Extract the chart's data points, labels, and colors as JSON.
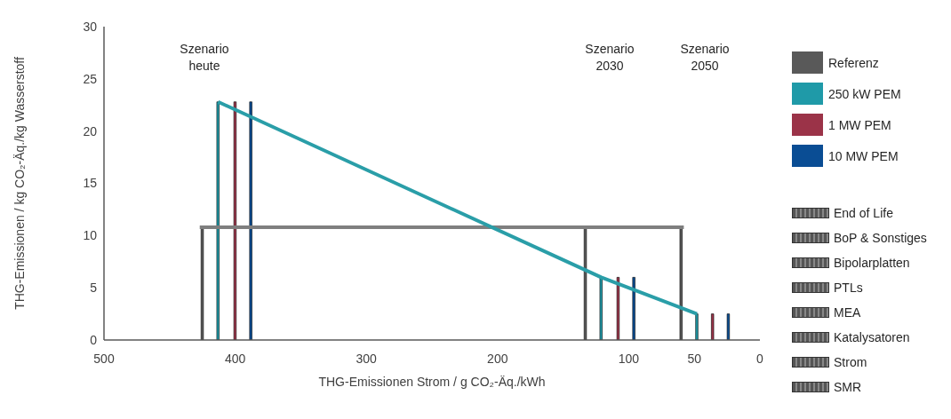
{
  "chart_data": {
    "type": "bar",
    "xlabel": "THG-Emissionen Strom / g CO₂-Äq./kWh",
    "ylabel": "THG-Emissionen / kg CO₂-Äq./kg Wasserstoff",
    "xlim": [
      500,
      0
    ],
    "xticks": [
      500,
      400,
      300,
      200,
      100,
      50,
      0
    ],
    "ylim": [
      0,
      30
    ],
    "yticks": [
      0,
      5,
      10,
      15,
      20,
      25,
      30
    ],
    "grid": false,
    "legend": "right",
    "series": [
      {
        "name": "Referenz",
        "color": "#595959",
        "x": [
          425,
          133,
          60
        ],
        "values": [
          10.8,
          10.8,
          10.8
        ]
      },
      {
        "name": "250 kW PEM",
        "color": "#1f9aa8",
        "x": [
          413,
          121,
          48
        ],
        "values": [
          22.8,
          6.0,
          2.5
        ]
      },
      {
        "name": "1 MW PEM",
        "color": "#9b3348",
        "x": [
          400,
          108,
          36
        ],
        "values": [
          22.8,
          6.0,
          2.5
        ]
      },
      {
        "name": "10 MW PEM",
        "color": "#0a4d94",
        "x": [
          388,
          96,
          24
        ],
        "values": [
          22.8,
          6.0,
          2.5
        ]
      },
      {
        "type": "line",
        "color": "#7f7f7f",
        "x": [
          427,
          58
        ],
        "values": [
          10.8,
          10.8
        ]
      },
      {
        "type": "line",
        "color": "#2a9ea8",
        "x": [
          413,
          121,
          48
        ],
        "values": [
          22.8,
          6.0,
          2.5
        ]
      }
    ],
    "annotations": [
      "Szenario heute",
      "Szenario 2030",
      "Szenario 2050",
      "End of Life",
      "BoP & Sonstiges",
      "Bipolarplatten",
      "PTLs",
      "MEA",
      "Katalysatoren",
      "Strom",
      "SMR"
    ]
  }
}
